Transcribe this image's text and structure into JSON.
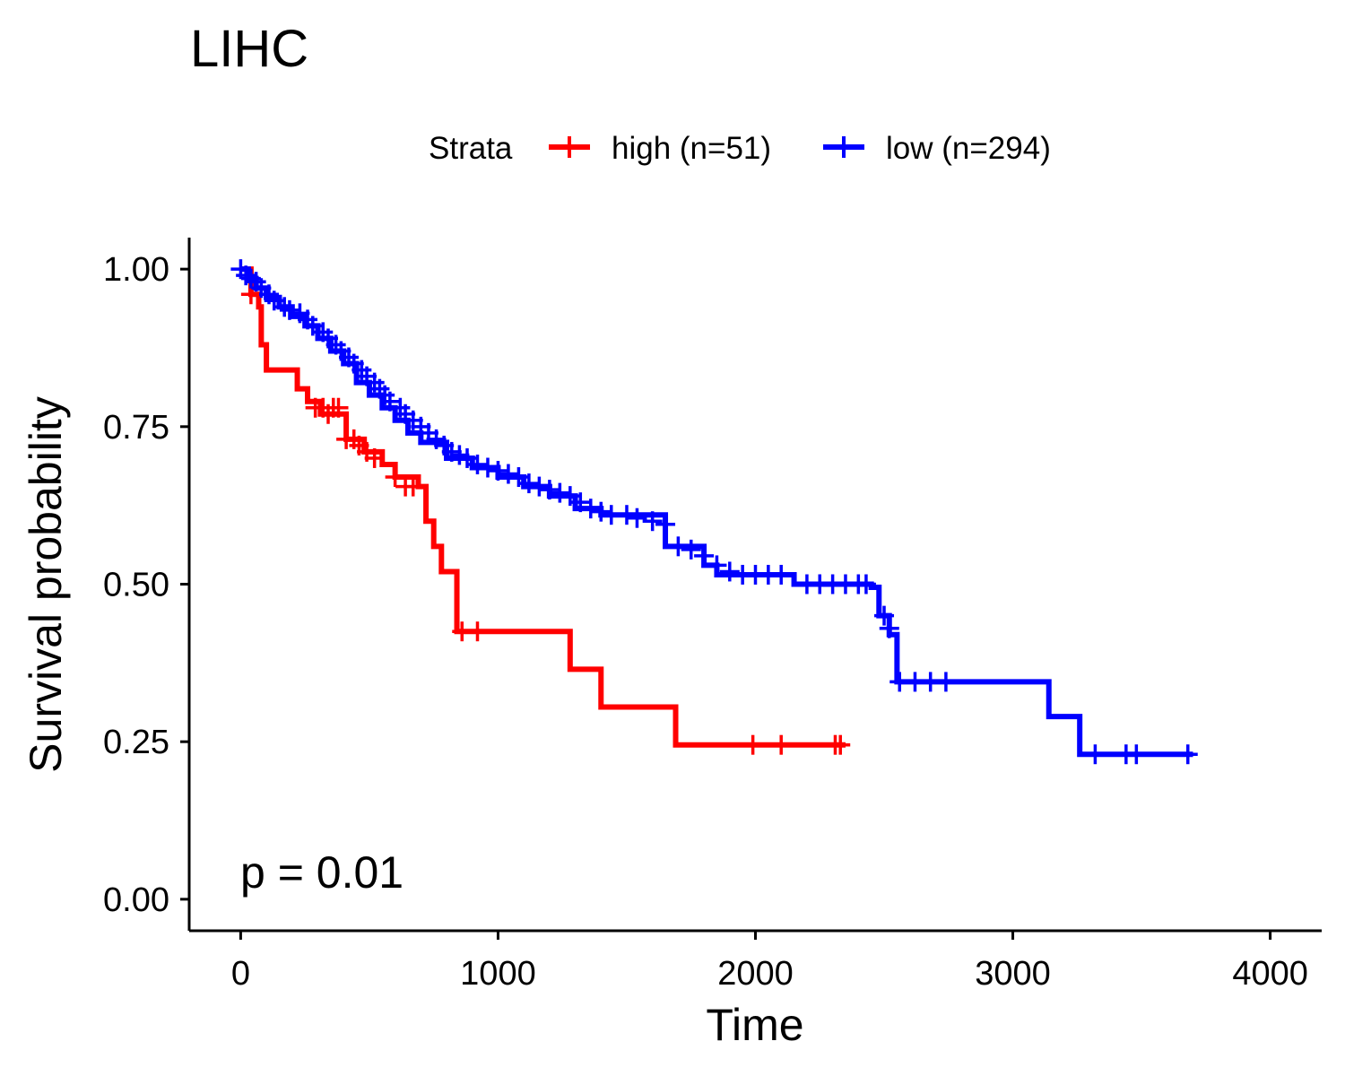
{
  "chart_data": {
    "type": "line",
    "title": "LIHC",
    "xlabel": "Time",
    "ylabel": "Survival probability",
    "xlim": [
      -200,
      4200
    ],
    "ylim": [
      -0.05,
      1.05
    ],
    "x_ticks": [
      0,
      1000,
      2000,
      3000,
      4000
    ],
    "x_tick_labels": [
      "0",
      "1000",
      "2000",
      "3000",
      "4000"
    ],
    "y_ticks": [
      0,
      0.25,
      0.5,
      0.75,
      1.0
    ],
    "y_tick_labels": [
      "0.00",
      "0.25",
      "0.50",
      "0.75",
      "1.00"
    ],
    "grid": false,
    "legend": {
      "title": "Strata",
      "position": "top"
    },
    "annotation": "p = 0.01",
    "series": [
      {
        "name": "high (n=51)",
        "color": "#ff0000",
        "steps": [
          [
            0,
            1.0
          ],
          [
            40,
            0.96
          ],
          [
            70,
            0.94
          ],
          [
            80,
            0.88
          ],
          [
            100,
            0.84
          ],
          [
            220,
            0.81
          ],
          [
            260,
            0.79
          ],
          [
            310,
            0.77
          ],
          [
            410,
            0.73
          ],
          [
            480,
            0.71
          ],
          [
            550,
            0.69
          ],
          [
            600,
            0.67
          ],
          [
            690,
            0.655
          ],
          [
            720,
            0.6
          ],
          [
            750,
            0.56
          ],
          [
            780,
            0.52
          ],
          [
            840,
            0.425
          ],
          [
            1280,
            0.365
          ],
          [
            1400,
            0.305
          ],
          [
            1690,
            0.245
          ],
          [
            2350,
            0.245
          ]
        ],
        "censored": [
          [
            40,
            0.96
          ],
          [
            290,
            0.78
          ],
          [
            320,
            0.78
          ],
          [
            340,
            0.77
          ],
          [
            360,
            0.78
          ],
          [
            380,
            0.78
          ],
          [
            410,
            0.73
          ],
          [
            440,
            0.73
          ],
          [
            460,
            0.72
          ],
          [
            490,
            0.71
          ],
          [
            520,
            0.7
          ],
          [
            600,
            0.67
          ],
          [
            640,
            0.655
          ],
          [
            670,
            0.655
          ],
          [
            860,
            0.425
          ],
          [
            920,
            0.425
          ],
          [
            1990,
            0.245
          ],
          [
            2100,
            0.245
          ],
          [
            2310,
            0.245
          ],
          [
            2330,
            0.245
          ]
        ]
      },
      {
        "name": "low (n=294)",
        "color": "#0000ff",
        "steps": [
          [
            0,
            1.0
          ],
          [
            30,
            0.985
          ],
          [
            60,
            0.97
          ],
          [
            100,
            0.955
          ],
          [
            150,
            0.94
          ],
          [
            200,
            0.925
          ],
          [
            250,
            0.91
          ],
          [
            300,
            0.89
          ],
          [
            350,
            0.87
          ],
          [
            400,
            0.85
          ],
          [
            450,
            0.82
          ],
          [
            500,
            0.8
          ],
          [
            550,
            0.78
          ],
          [
            600,
            0.76
          ],
          [
            650,
            0.74
          ],
          [
            700,
            0.725
          ],
          [
            800,
            0.7
          ],
          [
            900,
            0.685
          ],
          [
            1000,
            0.67
          ],
          [
            1100,
            0.655
          ],
          [
            1200,
            0.64
          ],
          [
            1300,
            0.62
          ],
          [
            1400,
            0.61
          ],
          [
            1650,
            0.56
          ],
          [
            1800,
            0.53
          ],
          [
            1850,
            0.515
          ],
          [
            2150,
            0.5
          ],
          [
            2450,
            0.495
          ],
          [
            2480,
            0.45
          ],
          [
            2520,
            0.42
          ],
          [
            2550,
            0.345
          ],
          [
            3140,
            0.29
          ],
          [
            3260,
            0.23
          ],
          [
            3700,
            0.23
          ]
        ],
        "censored": [
          [
            0,
            1.0
          ],
          [
            20,
            0.99
          ],
          [
            40,
            0.985
          ],
          [
            60,
            0.98
          ],
          [
            80,
            0.97
          ],
          [
            110,
            0.96
          ],
          [
            130,
            0.95
          ],
          [
            170,
            0.94
          ],
          [
            190,
            0.935
          ],
          [
            230,
            0.93
          ],
          [
            260,
            0.92
          ],
          [
            280,
            0.91
          ],
          [
            320,
            0.9
          ],
          [
            340,
            0.89
          ],
          [
            370,
            0.88
          ],
          [
            390,
            0.87
          ],
          [
            420,
            0.86
          ],
          [
            440,
            0.85
          ],
          [
            470,
            0.84
          ],
          [
            490,
            0.83
          ],
          [
            520,
            0.82
          ],
          [
            540,
            0.81
          ],
          [
            560,
            0.8
          ],
          [
            580,
            0.79
          ],
          [
            620,
            0.78
          ],
          [
            640,
            0.77
          ],
          [
            670,
            0.76
          ],
          [
            700,
            0.75
          ],
          [
            730,
            0.74
          ],
          [
            760,
            0.73
          ],
          [
            790,
            0.72
          ],
          [
            820,
            0.71
          ],
          [
            850,
            0.705
          ],
          [
            880,
            0.7
          ],
          [
            920,
            0.69
          ],
          [
            960,
            0.685
          ],
          [
            1000,
            0.68
          ],
          [
            1040,
            0.675
          ],
          [
            1080,
            0.67
          ],
          [
            1120,
            0.66
          ],
          [
            1160,
            0.655
          ],
          [
            1200,
            0.65
          ],
          [
            1240,
            0.645
          ],
          [
            1280,
            0.64
          ],
          [
            1320,
            0.63
          ],
          [
            1360,
            0.62
          ],
          [
            1400,
            0.615
          ],
          [
            1440,
            0.61
          ],
          [
            1500,
            0.61
          ],
          [
            1540,
            0.605
          ],
          [
            1600,
            0.6
          ],
          [
            1650,
            0.595
          ],
          [
            1700,
            0.56
          ],
          [
            1750,
            0.555
          ],
          [
            1800,
            0.545
          ],
          [
            1850,
            0.53
          ],
          [
            1900,
            0.52
          ],
          [
            1950,
            0.515
          ],
          [
            2000,
            0.515
          ],
          [
            2050,
            0.515
          ],
          [
            2100,
            0.515
          ],
          [
            2200,
            0.5
          ],
          [
            2250,
            0.5
          ],
          [
            2300,
            0.5
          ],
          [
            2350,
            0.5
          ],
          [
            2400,
            0.5
          ],
          [
            2430,
            0.5
          ],
          [
            2500,
            0.45
          ],
          [
            2520,
            0.43
          ],
          [
            2560,
            0.345
          ],
          [
            2620,
            0.345
          ],
          [
            2680,
            0.345
          ],
          [
            2740,
            0.345
          ],
          [
            3320,
            0.23
          ],
          [
            3440,
            0.23
          ],
          [
            3480,
            0.23
          ],
          [
            3680,
            0.23
          ]
        ]
      }
    ]
  }
}
